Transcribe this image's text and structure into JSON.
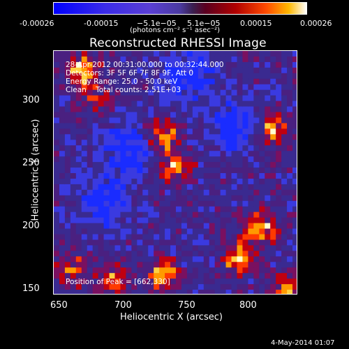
{
  "colorbar": {
    "ticks": [
      "-0.00026",
      "-0.00015",
      "−5.1e−05",
      "5.1e−05",
      "0.00015",
      "0.00026"
    ],
    "units": "(photons cm⁻² s⁻¹ asec⁻²)",
    "gradient_colors": [
      "#0000ff",
      "#5a3fd4",
      "#3a1f50",
      "#b00000",
      "#ff4a00",
      "#ffb800",
      "#ffffff"
    ]
  },
  "plot": {
    "title": "Reconstructed RHESSI Image",
    "info_lines": [
      "28-Apr-2012 00:31:00.000 to 00:32:44.000",
      "Detectors: 3F 5F 6F 7F 8F 9F, Att 0",
      "Energy Range: 25.0 - 50.0 keV",
      "Clean    Total counts: 2.51E+03"
    ],
    "peak_text": "Position of Peak = [662,330]",
    "x_ticks": [
      "650",
      "700",
      "750",
      "800"
    ],
    "y_ticks": [
      "300",
      "250",
      "200",
      "150"
    ],
    "x_label": "Heliocentric X (arcsec)",
    "y_label": "Heliocentric Y (arcsec)"
  },
  "timestamp": "4-May-2014 01:07"
}
